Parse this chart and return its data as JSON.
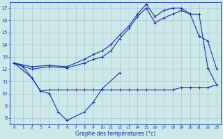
{
  "xlabel": "Graphe des températures (°c)",
  "bg_color": "#cce8e8",
  "grid_color": "#aabbcc",
  "line_color": "#1133aa",
  "ylim": [
    7.5,
    17.5
  ],
  "xlim": [
    -0.5,
    23.5
  ],
  "yticks": [
    8,
    9,
    10,
    11,
    12,
    13,
    14,
    15,
    16,
    17
  ],
  "xticks": [
    0,
    1,
    2,
    3,
    4,
    5,
    6,
    7,
    8,
    9,
    10,
    11,
    12,
    13,
    14,
    15,
    16,
    17,
    18,
    19,
    20,
    21,
    22,
    23
  ],
  "line1_x": [
    0,
    1,
    2,
    3,
    4,
    5,
    6,
    8,
    9,
    10,
    12
  ],
  "line1_y": [
    12.5,
    12.2,
    11.3,
    10.2,
    10.0,
    8.5,
    7.8,
    8.5,
    9.3,
    10.4,
    11.7
  ],
  "line2_x": [
    0,
    2,
    3,
    4,
    5,
    6,
    7,
    8,
    9,
    10,
    11,
    12,
    13,
    14,
    15,
    16,
    17,
    18,
    19,
    20,
    21,
    22,
    23
  ],
  "line2_y": [
    12.5,
    11.3,
    10.2,
    10.3,
    10.3,
    10.3,
    10.3,
    10.3,
    10.3,
    10.3,
    10.3,
    10.3,
    10.3,
    10.3,
    10.3,
    10.3,
    10.3,
    10.3,
    10.5,
    10.5,
    10.5,
    10.5,
    10.7
  ],
  "line3_x": [
    0,
    2,
    4,
    6,
    8,
    9,
    10,
    11,
    12,
    13,
    14,
    15,
    16,
    17,
    18,
    19,
    20,
    21,
    22,
    23
  ],
  "line3_y": [
    12.5,
    12.0,
    12.2,
    12.1,
    12.5,
    12.8,
    13.0,
    13.5,
    14.5,
    15.3,
    16.3,
    17.0,
    15.8,
    16.2,
    16.5,
    16.8,
    16.5,
    14.7,
    14.3,
    12.0
  ],
  "line4_x": [
    0,
    2,
    4,
    6,
    8,
    9,
    10,
    11,
    12,
    13,
    14,
    15,
    16,
    17,
    18,
    19,
    20,
    21,
    22,
    23
  ],
  "line4_y": [
    12.5,
    12.2,
    12.3,
    12.2,
    12.8,
    13.2,
    13.5,
    14.0,
    14.8,
    15.5,
    16.5,
    17.3,
    16.3,
    16.8,
    17.0,
    17.0,
    16.5,
    16.5,
    12.1,
    10.7
  ]
}
